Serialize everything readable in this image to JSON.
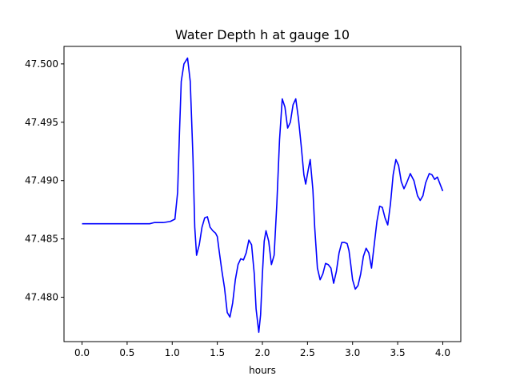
{
  "chart_data": {
    "type": "line",
    "title": "Water Depth h at gauge 10",
    "xlabel": "hours",
    "ylabel": "",
    "xlim": [
      -0.2,
      4.2
    ],
    "ylim": [
      47.4762,
      47.5015
    ],
    "xticks": [
      0.0,
      0.5,
      1.0,
      1.5,
      2.0,
      2.5,
      3.0,
      3.5,
      4.0
    ],
    "xtick_labels": [
      "0.0",
      "0.5",
      "1.0",
      "1.5",
      "2.0",
      "2.5",
      "3.0",
      "3.5",
      "4.0"
    ],
    "yticks": [
      47.48,
      47.485,
      47.49,
      47.495,
      47.5
    ],
    "ytick_labels": [
      "47.480",
      "47.485",
      "47.490",
      "47.495",
      "47.500"
    ],
    "grid": false,
    "series": [
      {
        "color": "#0000ff",
        "points": [
          [
            0.0,
            47.4863
          ],
          [
            0.2,
            47.4863
          ],
          [
            0.4,
            47.4863
          ],
          [
            0.6,
            47.4863
          ],
          [
            0.75,
            47.4863
          ],
          [
            0.8,
            47.4864
          ],
          [
            0.9,
            47.4864
          ],
          [
            0.98,
            47.4865
          ],
          [
            1.03,
            47.4867
          ],
          [
            1.06,
            47.489
          ],
          [
            1.08,
            47.494
          ],
          [
            1.1,
            47.4985
          ],
          [
            1.13,
            47.5
          ],
          [
            1.17,
            47.5005
          ],
          [
            1.2,
            47.4985
          ],
          [
            1.23,
            47.492
          ],
          [
            1.25,
            47.486
          ],
          [
            1.27,
            47.4836
          ],
          [
            1.3,
            47.4845
          ],
          [
            1.33,
            47.486
          ],
          [
            1.36,
            47.4868
          ],
          [
            1.39,
            47.4869
          ],
          [
            1.42,
            47.486
          ],
          [
            1.45,
            47.4857
          ],
          [
            1.48,
            47.4855
          ],
          [
            1.5,
            47.4852
          ],
          [
            1.52,
            47.484
          ],
          [
            1.55,
            47.4823
          ],
          [
            1.58,
            47.4808
          ],
          [
            1.61,
            47.4787
          ],
          [
            1.64,
            47.4783
          ],
          [
            1.67,
            47.4795
          ],
          [
            1.7,
            47.4815
          ],
          [
            1.73,
            47.4828
          ],
          [
            1.76,
            47.4833
          ],
          [
            1.79,
            47.4832
          ],
          [
            1.82,
            47.4838
          ],
          [
            1.85,
            47.4849
          ],
          [
            1.88,
            47.4845
          ],
          [
            1.91,
            47.482
          ],
          [
            1.93,
            47.479
          ],
          [
            1.96,
            47.477
          ],
          [
            1.98,
            47.4785
          ],
          [
            2.0,
            47.482
          ],
          [
            2.02,
            47.4848
          ],
          [
            2.04,
            47.4857
          ],
          [
            2.07,
            47.4848
          ],
          [
            2.1,
            47.4828
          ],
          [
            2.13,
            47.4836
          ],
          [
            2.16,
            47.488
          ],
          [
            2.19,
            47.4935
          ],
          [
            2.22,
            47.497
          ],
          [
            2.25,
            47.4963
          ],
          [
            2.28,
            47.4945
          ],
          [
            2.31,
            47.495
          ],
          [
            2.34,
            47.4965
          ],
          [
            2.37,
            47.497
          ],
          [
            2.4,
            47.4953
          ],
          [
            2.43,
            47.493
          ],
          [
            2.46,
            47.4905
          ],
          [
            2.48,
            47.4897
          ],
          [
            2.51,
            47.491
          ],
          [
            2.53,
            47.4918
          ],
          [
            2.56,
            47.4892
          ],
          [
            2.58,
            47.486
          ],
          [
            2.61,
            47.4825
          ],
          [
            2.64,
            47.4815
          ],
          [
            2.67,
            47.482
          ],
          [
            2.7,
            47.4829
          ],
          [
            2.73,
            47.4828
          ],
          [
            2.76,
            47.4825
          ],
          [
            2.79,
            47.4812
          ],
          [
            2.82,
            47.4822
          ],
          [
            2.85,
            47.4838
          ],
          [
            2.88,
            47.4847
          ],
          [
            2.91,
            47.4847
          ],
          [
            2.94,
            47.4846
          ],
          [
            2.96,
            47.484
          ],
          [
            2.98,
            47.4828
          ],
          [
            3.0,
            47.4815
          ],
          [
            3.03,
            47.4807
          ],
          [
            3.06,
            47.481
          ],
          [
            3.09,
            47.482
          ],
          [
            3.12,
            47.4835
          ],
          [
            3.15,
            47.4842
          ],
          [
            3.18,
            47.4838
          ],
          [
            3.21,
            47.4825
          ],
          [
            3.24,
            47.4845
          ],
          [
            3.27,
            47.4865
          ],
          [
            3.3,
            47.4878
          ],
          [
            3.33,
            47.4877
          ],
          [
            3.36,
            47.4868
          ],
          [
            3.39,
            47.4862
          ],
          [
            3.42,
            47.488
          ],
          [
            3.45,
            47.4905
          ],
          [
            3.48,
            47.4918
          ],
          [
            3.51,
            47.4913
          ],
          [
            3.54,
            47.4899
          ],
          [
            3.57,
            47.4893
          ],
          [
            3.6,
            47.4898
          ],
          [
            3.64,
            47.4906
          ],
          [
            3.68,
            47.49
          ],
          [
            3.72,
            47.4887
          ],
          [
            3.75,
            47.4883
          ],
          [
            3.78,
            47.4887
          ],
          [
            3.81,
            47.4898
          ],
          [
            3.85,
            47.4906
          ],
          [
            3.88,
            47.4905
          ],
          [
            3.91,
            47.4901
          ],
          [
            3.94,
            47.4903
          ],
          [
            3.97,
            47.4897
          ],
          [
            4.0,
            47.4891
          ]
        ]
      }
    ]
  }
}
